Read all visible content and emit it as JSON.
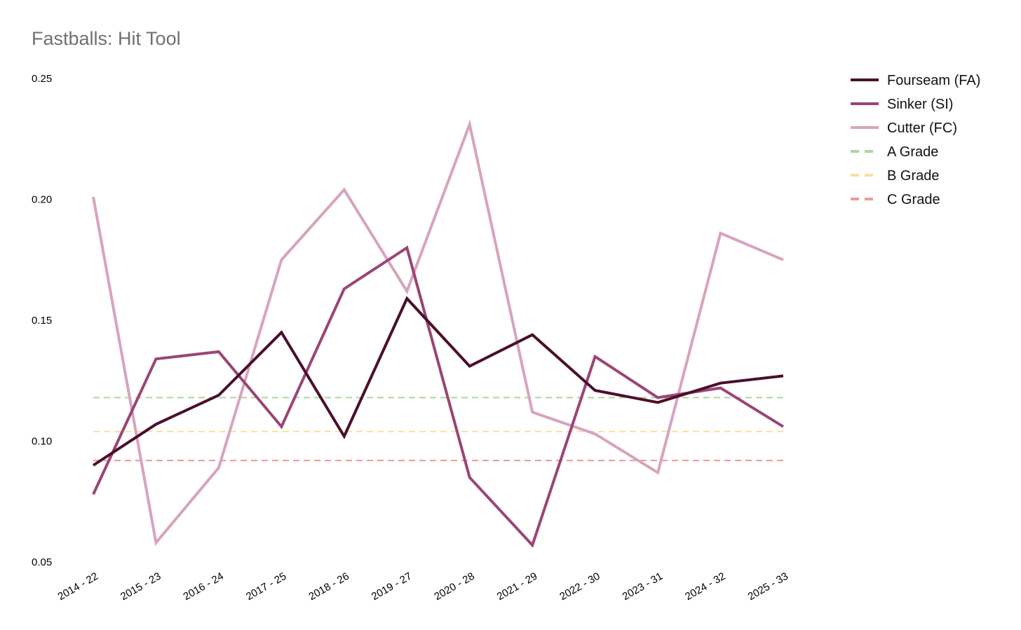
{
  "chart_data": {
    "type": "line",
    "title": "Fastballs: Hit Tool",
    "xlabel": "",
    "ylabel": "",
    "categories": [
      "2014 - 22",
      "2015 - 23",
      "2016 - 24",
      "2017 - 25",
      "2018 - 26",
      "2019 - 27",
      "2020 - 28",
      "2021 - 29",
      "2022 - 30",
      "2023 - 31",
      "2024 - 32",
      "2025 - 33"
    ],
    "ylim": [
      0.05,
      0.25
    ],
    "yticks": [
      "0.05",
      "0.10",
      "0.15",
      "0.20",
      "0.25"
    ],
    "grid": false,
    "legend_position": "top-right, outside plot",
    "series": [
      {
        "name": "Fourseam (FA)",
        "color": "#4a0f2c",
        "style": "solid",
        "values": [
          0.09,
          0.107,
          0.119,
          0.145,
          0.102,
          0.159,
          0.131,
          0.144,
          0.121,
          0.116,
          0.124,
          0.127
        ]
      },
      {
        "name": "Sinker (SI)",
        "color": "#9a4575",
        "style": "solid",
        "values": [
          0.078,
          0.134,
          0.137,
          0.106,
          0.163,
          0.18,
          0.085,
          0.057,
          0.135,
          0.118,
          0.122,
          0.106
        ]
      },
      {
        "name": "Cutter (FC)",
        "color": "#d6a4bf",
        "style": "solid",
        "values": [
          0.201,
          0.058,
          0.089,
          0.175,
          0.204,
          0.162,
          0.231,
          0.112,
          0.103,
          0.087,
          0.186,
          0.175
        ]
      },
      {
        "name": "A Grade",
        "color": "#b0d59a",
        "style": "dashed",
        "values": [
          0.118,
          0.118,
          0.118,
          0.118,
          0.118,
          0.118,
          0.118,
          0.118,
          0.118,
          0.118,
          0.118,
          0.118
        ]
      },
      {
        "name": "B Grade",
        "color": "#f9e09a",
        "style": "dashed",
        "values": [
          0.104,
          0.104,
          0.104,
          0.104,
          0.104,
          0.104,
          0.104,
          0.104,
          0.104,
          0.104,
          0.104,
          0.104
        ]
      },
      {
        "name": "C Grade",
        "color": "#ec9a9a",
        "style": "dashed",
        "values": [
          0.092,
          0.092,
          0.092,
          0.092,
          0.092,
          0.092,
          0.092,
          0.092,
          0.092,
          0.092,
          0.092,
          0.092
        ]
      }
    ]
  }
}
